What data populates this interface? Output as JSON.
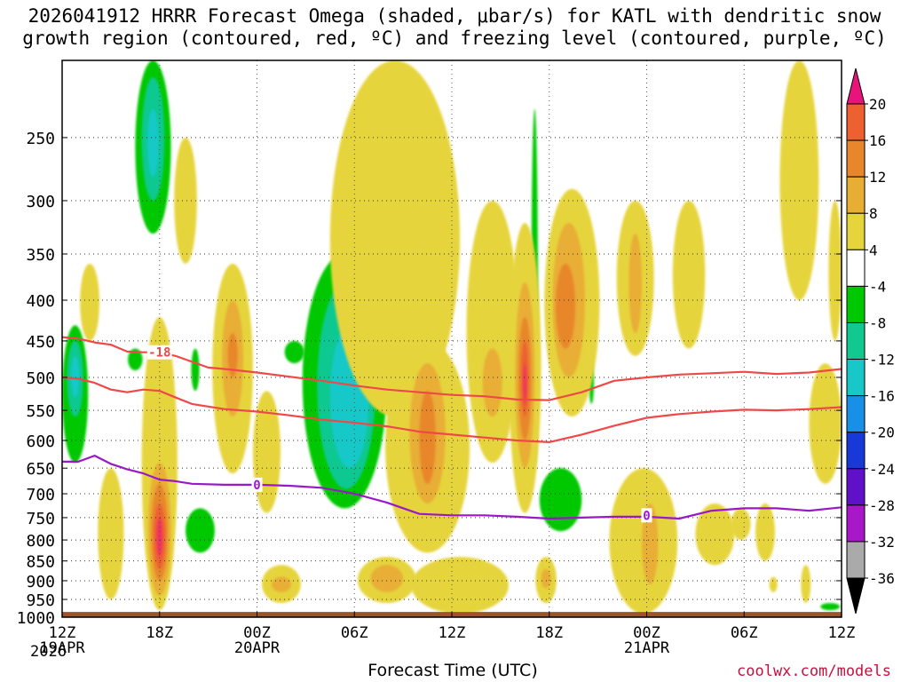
{
  "title": {
    "line1": "2026041912 HRRR Forecast Omega (shaded, μbar/s) for KATL with dendritic snow",
    "line2": "growth region (contoured, red, ºC) and freezing level (contoured, purple, ºC)"
  },
  "credit": "coolwx.com/models",
  "colors": {
    "yellow": "#e6d43c",
    "light_orange": "#e8ae34",
    "orange": "#e8862c",
    "red_orange": "#ee6030",
    "hot_pink": "#f03062",
    "green": "#00c800",
    "sea_green": "#10c890",
    "cyan": "#18c8c8",
    "ground": "#a0522d",
    "snow_line": "#f04848",
    "freeze_line": "#9a18c8"
  },
  "chart_data": {
    "type": "heatmap",
    "xlabel": "Forecast Time (UTC)",
    "ylabel": "",
    "x_range_hours": [
      0,
      48
    ],
    "y_range_hpa": [
      1000,
      200
    ],
    "x_ticks": [
      {
        "hour": 0,
        "label": "12Z",
        "date": "19APR",
        "year": "2026"
      },
      {
        "hour": 6,
        "label": "18Z"
      },
      {
        "hour": 12,
        "label": "00Z",
        "date": "20APR"
      },
      {
        "hour": 18,
        "label": "06Z"
      },
      {
        "hour": 24,
        "label": "12Z"
      },
      {
        "hour": 30,
        "label": "18Z"
      },
      {
        "hour": 36,
        "label": "00Z",
        "date": "21APR"
      },
      {
        "hour": 42,
        "label": "06Z"
      },
      {
        "hour": 48,
        "label": "12Z"
      }
    ],
    "y_ticks": [
      250,
      300,
      350,
      400,
      450,
      500,
      550,
      600,
      650,
      700,
      750,
      800,
      850,
      900,
      950,
      1000
    ],
    "colorbar": {
      "labels": [
        20,
        16,
        12,
        8,
        4,
        -4,
        -8,
        -12,
        -16,
        -20,
        -24,
        -28,
        -32,
        -36
      ],
      "colors": [
        "#f03062",
        "#ee6030",
        "#e8862c",
        "#e8ae34",
        "#e6d43c",
        "#ffffff",
        "#00c800",
        "#10c890",
        "#18c8c8",
        "#1890e8",
        "#1838d8",
        "#6010c8",
        "#a818c8",
        "#aaaaaa"
      ],
      "top_arrow_color": "#e8147c",
      "bottom_arrow_color": "#000000"
    },
    "contours": [
      {
        "name": "dgz_top",
        "label": "-18",
        "units": "ºC",
        "color": "#f04848",
        "label_hour": 6,
        "label_pressure": 465,
        "points": [
          [
            0,
            445
          ],
          [
            1,
            447
          ],
          [
            2,
            452
          ],
          [
            3,
            455
          ],
          [
            4,
            464
          ],
          [
            5,
            465
          ],
          [
            6,
            465
          ],
          [
            7,
            470
          ],
          [
            8,
            478
          ],
          [
            9,
            486
          ],
          [
            10,
            488
          ],
          [
            12,
            493
          ],
          [
            14,
            499
          ],
          [
            16,
            505
          ],
          [
            18,
            512
          ],
          [
            20,
            518
          ],
          [
            22,
            522
          ],
          [
            24,
            526
          ],
          [
            26,
            528
          ],
          [
            28,
            533
          ],
          [
            30,
            534
          ],
          [
            32,
            522
          ],
          [
            34,
            505
          ],
          [
            36,
            500
          ],
          [
            38,
            496
          ],
          [
            40,
            494
          ],
          [
            42,
            492
          ],
          [
            44,
            495
          ],
          [
            46,
            493
          ],
          [
            48,
            488
          ]
        ]
      },
      {
        "name": "dgz_bottom",
        "label": "",
        "units": "ºC",
        "color": "#f04848",
        "points": [
          [
            0,
            500
          ],
          [
            1,
            502
          ],
          [
            2,
            508
          ],
          [
            3,
            518
          ],
          [
            4,
            522
          ],
          [
            5,
            518
          ],
          [
            6,
            520
          ],
          [
            7,
            530
          ],
          [
            8,
            540
          ],
          [
            10,
            548
          ],
          [
            12,
            552
          ],
          [
            14,
            558
          ],
          [
            16,
            565
          ],
          [
            18,
            570
          ],
          [
            20,
            576
          ],
          [
            22,
            585
          ],
          [
            24,
            590
          ],
          [
            26,
            595
          ],
          [
            28,
            600
          ],
          [
            30,
            603
          ],
          [
            32,
            590
          ],
          [
            34,
            575
          ],
          [
            36,
            562
          ],
          [
            38,
            556
          ],
          [
            40,
            552
          ],
          [
            42,
            549
          ],
          [
            44,
            550
          ],
          [
            46,
            548
          ],
          [
            48,
            545
          ]
        ]
      },
      {
        "name": "freezing_level",
        "label": "0",
        "units": "ºC",
        "color": "#9a18c8",
        "label_hours": [
          12,
          36
        ],
        "label_pressures": [
          682,
          745
        ],
        "points": [
          [
            0,
            638
          ],
          [
            1,
            638
          ],
          [
            2,
            627
          ],
          [
            3,
            642
          ],
          [
            4,
            652
          ],
          [
            5,
            660
          ],
          [
            6,
            672
          ],
          [
            7,
            675
          ],
          [
            8,
            680
          ],
          [
            10,
            682
          ],
          [
            12,
            682
          ],
          [
            14,
            684
          ],
          [
            16,
            688
          ],
          [
            18,
            700
          ],
          [
            20,
            718
          ],
          [
            22,
            742
          ],
          [
            24,
            745
          ],
          [
            26,
            745
          ],
          [
            28,
            748
          ],
          [
            30,
            752
          ],
          [
            32,
            750
          ],
          [
            34,
            748
          ],
          [
            36,
            748
          ],
          [
            38,
            752
          ],
          [
            40,
            735
          ],
          [
            42,
            730
          ],
          [
            44,
            730
          ],
          [
            46,
            735
          ],
          [
            48,
            728
          ]
        ]
      }
    ],
    "shaded_regions": [
      {
        "hour": 0.8,
        "hour_width": 1.6,
        "p_top": 430,
        "p_bot": 640,
        "color": "green"
      },
      {
        "hour": 0.8,
        "hour_width": 1.0,
        "p_top": 450,
        "p_bot": 560,
        "color": "sea_green"
      },
      {
        "hour": 0.8,
        "hour_width": 0.5,
        "p_top": 470,
        "p_bot": 530,
        "color": "cyan"
      },
      {
        "hour": 5.6,
        "hour_width": 2.2,
        "p_top": 200,
        "p_bot": 330,
        "color": "green"
      },
      {
        "hour": 5.6,
        "hour_width": 1.4,
        "p_top": 210,
        "p_bot": 300,
        "color": "sea_green"
      },
      {
        "hour": 5.6,
        "hour_width": 0.7,
        "p_top": 230,
        "p_bot": 280,
        "color": "cyan"
      },
      {
        "hour": 4.5,
        "hour_width": 0.9,
        "p_top": 460,
        "p_bot": 490,
        "color": "green"
      },
      {
        "hour": 8.2,
        "hour_width": 0.5,
        "p_top": 460,
        "p_bot": 520,
        "color": "green"
      },
      {
        "hour": 8.5,
        "hour_width": 1.8,
        "p_top": 730,
        "p_bot": 830,
        "color": "green"
      },
      {
        "hour": 14.3,
        "hour_width": 1.2,
        "p_top": 450,
        "p_bot": 480,
        "color": "green"
      },
      {
        "hour": 17.4,
        "hour_width": 5.2,
        "p_top": 350,
        "p_bot": 730,
        "color": "green"
      },
      {
        "hour": 17.5,
        "hour_width": 3.6,
        "p_top": 380,
        "p_bot": 690,
        "color": "sea_green"
      },
      {
        "hour": 17.7,
        "hour_width": 2.4,
        "p_top": 430,
        "p_bot": 650,
        "color": "cyan"
      },
      {
        "hour": 29.1,
        "hour_width": 0.4,
        "p_top": 230,
        "p_bot": 650,
        "color": "green"
      },
      {
        "hour": 30.7,
        "hour_width": 2.6,
        "p_top": 650,
        "p_bot": 780,
        "color": "green"
      },
      {
        "hour": 27.1,
        "hour_width": 0.3,
        "p_top": 890,
        "p_bot": 940,
        "color": "green"
      },
      {
        "hour": 32.6,
        "hour_width": 0.3,
        "p_top": 480,
        "p_bot": 540,
        "color": "green"
      },
      {
        "hour": 47.3,
        "hour_width": 1.2,
        "p_top": 960,
        "p_bot": 980,
        "color": "green"
      },
      {
        "hour": 3.0,
        "hour_width": 1.6,
        "p_top": 650,
        "p_bot": 950,
        "color": "yellow"
      },
      {
        "hour": 6.0,
        "hour_width": 2.2,
        "p_top": 420,
        "p_bot": 980,
        "color": "yellow"
      },
      {
        "hour": 6.0,
        "hour_width": 1.4,
        "p_top": 640,
        "p_bot": 940,
        "color": "light_orange"
      },
      {
        "hour": 6.0,
        "hour_width": 1.0,
        "p_top": 680,
        "p_bot": 900,
        "color": "orange"
      },
      {
        "hour": 6.0,
        "hour_width": 0.7,
        "p_top": 720,
        "p_bot": 870,
        "color": "red_orange"
      },
      {
        "hour": 6.0,
        "hour_width": 0.35,
        "p_top": 750,
        "p_bot": 840,
        "color": "hot_pink"
      },
      {
        "hour": 1.7,
        "hour_width": 1.2,
        "p_top": 360,
        "p_bot": 450,
        "color": "yellow"
      },
      {
        "hour": 7.6,
        "hour_width": 1.4,
        "p_top": 250,
        "p_bot": 360,
        "color": "yellow"
      },
      {
        "hour": 10.5,
        "hour_width": 2.5,
        "p_top": 360,
        "p_bot": 660,
        "color": "yellow"
      },
      {
        "hour": 10.5,
        "hour_width": 1.3,
        "p_top": 400,
        "p_bot": 560,
        "color": "light_orange"
      },
      {
        "hour": 10.5,
        "hour_width": 0.6,
        "p_top": 440,
        "p_bot": 500,
        "color": "orange"
      },
      {
        "hour": 12.6,
        "hour_width": 1.7,
        "p_top": 520,
        "p_bot": 740,
        "color": "yellow"
      },
      {
        "hour": 13.5,
        "hour_width": 2.4,
        "p_top": 860,
        "p_bot": 960,
        "color": "yellow"
      },
      {
        "hour": 13.5,
        "hour_width": 1.2,
        "p_top": 890,
        "p_bot": 930,
        "color": "light_orange"
      },
      {
        "hour": 20.5,
        "hour_width": 8.0,
        "p_top": 200,
        "p_bot": 560,
        "color": "yellow"
      },
      {
        "hour": 22.5,
        "hour_width": 5.2,
        "p_top": 450,
        "p_bot": 830,
        "color": "yellow"
      },
      {
        "hour": 22.5,
        "hour_width": 2.2,
        "p_top": 480,
        "p_bot": 720,
        "color": "light_orange"
      },
      {
        "hour": 22.5,
        "hour_width": 1.0,
        "p_top": 520,
        "p_bot": 680,
        "color": "orange"
      },
      {
        "hour": 26.5,
        "hour_width": 3.2,
        "p_top": 300,
        "p_bot": 640,
        "color": "yellow"
      },
      {
        "hour": 26.5,
        "hour_width": 1.2,
        "p_top": 460,
        "p_bot": 560,
        "color": "light_orange"
      },
      {
        "hour": 28.5,
        "hour_width": 2.0,
        "p_top": 320,
        "p_bot": 740,
        "color": "yellow"
      },
      {
        "hour": 28.5,
        "hour_width": 1.2,
        "p_top": 380,
        "p_bot": 650,
        "color": "light_orange"
      },
      {
        "hour": 28.5,
        "hour_width": 0.8,
        "p_top": 420,
        "p_bot": 600,
        "color": "orange"
      },
      {
        "hour": 28.5,
        "hour_width": 0.45,
        "p_top": 450,
        "p_bot": 560,
        "color": "red_orange"
      },
      {
        "hour": 28.5,
        "hour_width": 0.2,
        "p_top": 480,
        "p_bot": 540,
        "color": "hot_pink"
      },
      {
        "hour": 31.4,
        "hour_width": 3.4,
        "p_top": 290,
        "p_bot": 560,
        "color": "yellow"
      },
      {
        "hour": 31.2,
        "hour_width": 2.0,
        "p_top": 320,
        "p_bot": 500,
        "color": "light_orange"
      },
      {
        "hour": 31.0,
        "hour_width": 1.2,
        "p_top": 360,
        "p_bot": 460,
        "color": "orange"
      },
      {
        "hour": 24.5,
        "hour_width": 6.0,
        "p_top": 840,
        "p_bot": 990,
        "color": "yellow"
      },
      {
        "hour": 20.0,
        "hour_width": 3.6,
        "p_top": 840,
        "p_bot": 960,
        "color": "yellow"
      },
      {
        "hour": 20.0,
        "hour_width": 2.0,
        "p_top": 860,
        "p_bot": 930,
        "color": "light_orange"
      },
      {
        "hour": 29.8,
        "hour_width": 1.3,
        "p_top": 840,
        "p_bot": 960,
        "color": "yellow"
      },
      {
        "hour": 29.8,
        "hour_width": 0.6,
        "p_top": 870,
        "p_bot": 920,
        "color": "light_orange"
      },
      {
        "hour": 35.8,
        "hour_width": 4.2,
        "p_top": 650,
        "p_bot": 990,
        "color": "yellow"
      },
      {
        "hour": 36.2,
        "hour_width": 1.0,
        "p_top": 720,
        "p_bot": 910,
        "color": "light_orange"
      },
      {
        "hour": 35.3,
        "hour_width": 2.3,
        "p_top": 300,
        "p_bot": 470,
        "color": "yellow"
      },
      {
        "hour": 35.3,
        "hour_width": 0.8,
        "p_top": 330,
        "p_bot": 440,
        "color": "light_orange"
      },
      {
        "hour": 38.6,
        "hour_width": 2.0,
        "p_top": 300,
        "p_bot": 460,
        "color": "yellow"
      },
      {
        "hour": 40.2,
        "hour_width": 2.4,
        "p_top": 720,
        "p_bot": 860,
        "color": "yellow"
      },
      {
        "hour": 43.3,
        "hour_width": 1.2,
        "p_top": 720,
        "p_bot": 850,
        "color": "yellow"
      },
      {
        "hour": 45.4,
        "hour_width": 2.4,
        "p_top": 200,
        "p_bot": 400,
        "color": "yellow"
      },
      {
        "hour": 47.0,
        "hour_width": 2.0,
        "p_top": 480,
        "p_bot": 680,
        "color": "yellow"
      },
      {
        "hour": 47.6,
        "hour_width": 0.8,
        "p_top": 300,
        "p_bot": 450,
        "color": "yellow"
      },
      {
        "hour": 41.8,
        "hour_width": 1.2,
        "p_top": 730,
        "p_bot": 800,
        "color": "yellow"
      },
      {
        "hour": 45.8,
        "hour_width": 0.6,
        "p_top": 860,
        "p_bot": 960,
        "color": "yellow"
      },
      {
        "hour": 43.8,
        "hour_width": 0.5,
        "p_top": 890,
        "p_bot": 930,
        "color": "yellow"
      }
    ],
    "ground": {
      "p_top": 985,
      "p_bot": 1000,
      "color": "ground"
    }
  }
}
